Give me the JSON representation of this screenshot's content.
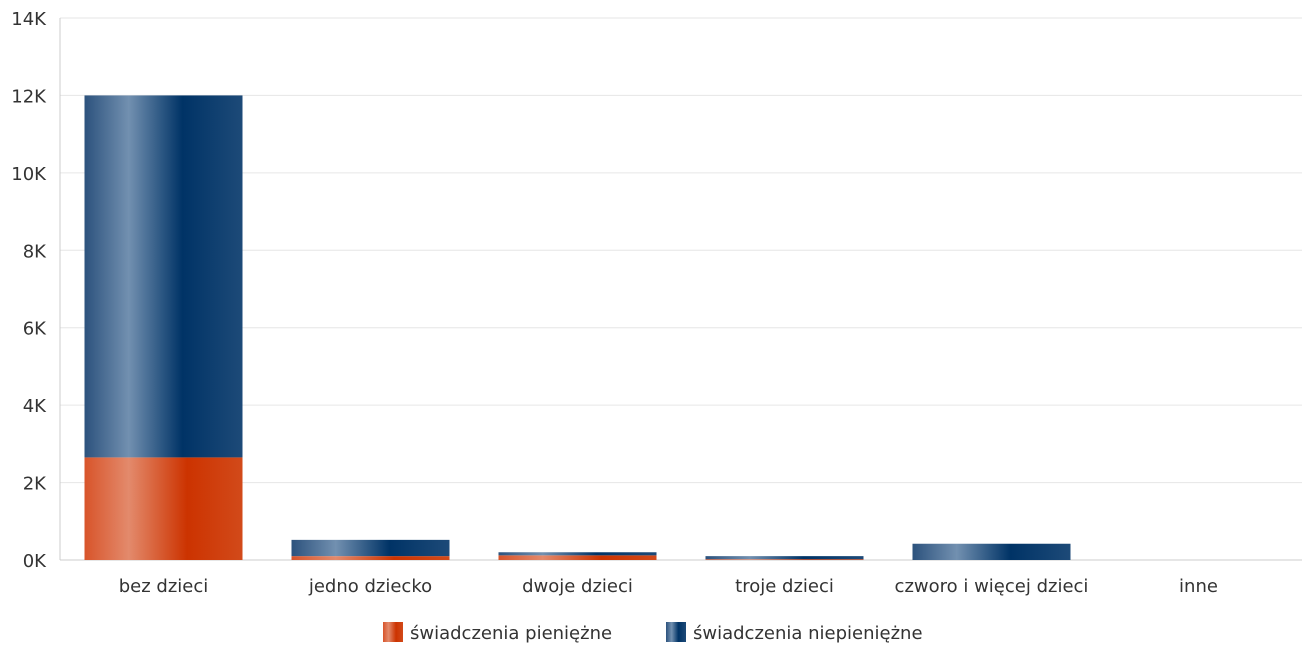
{
  "chart_data": {
    "type": "bar",
    "stacked": true,
    "categories": [
      "bez dzieci",
      "jedno dziecko",
      "dwoje dzieci",
      "troje dzieci",
      "czworo i więcej dzieci",
      "inne"
    ],
    "series": [
      {
        "name": "świadczenia pieniężne",
        "color": "#cc3300",
        "values": [
          2650,
          100,
          120,
          20,
          0,
          0
        ]
      },
      {
        "name": "świadczenia niepieniężne",
        "color": "#003366",
        "values": [
          9350,
          420,
          80,
          80,
          420,
          0
        ]
      }
    ],
    "y_ticks": [
      "0K",
      "2K",
      "4K",
      "6K",
      "8K",
      "10K",
      "12K",
      "14K"
    ],
    "ylim": [
      0,
      14000
    ],
    "grid": true,
    "legend": "bottom-center"
  }
}
